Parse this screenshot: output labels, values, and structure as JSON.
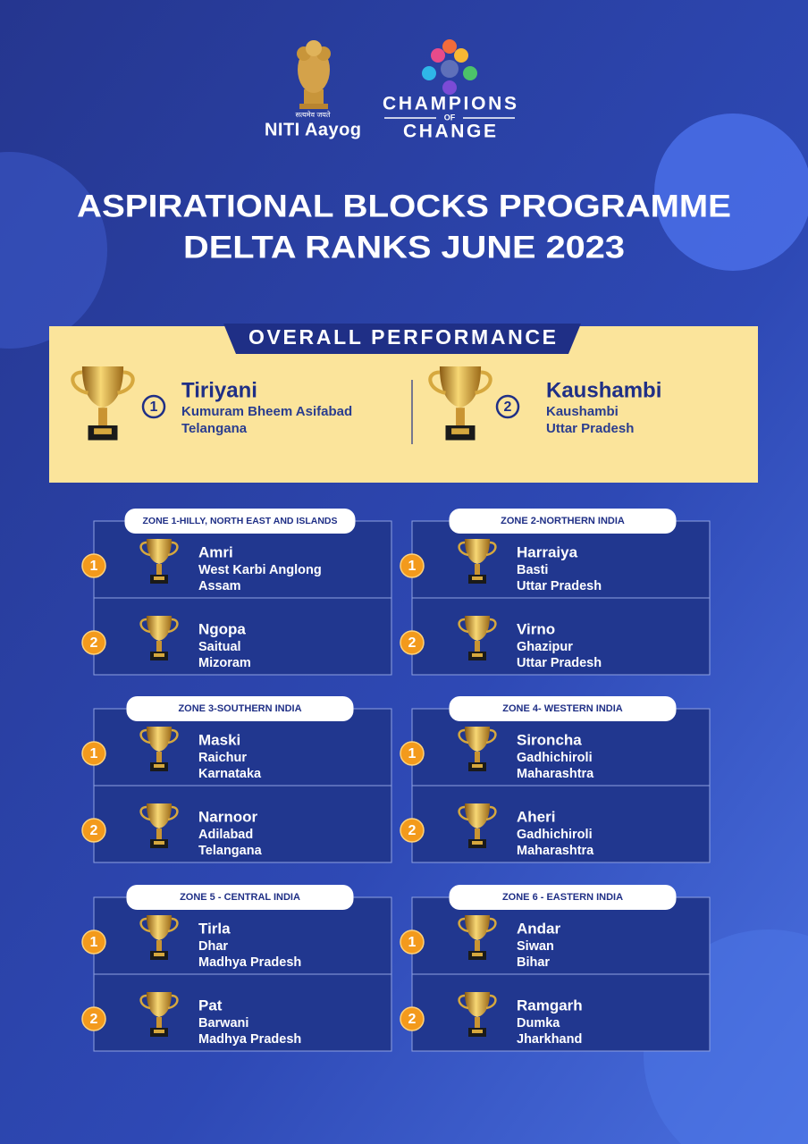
{
  "header": {
    "emblem_motto": "सत्यमेव जयते",
    "org": "NITI Aayog",
    "logo": [
      "CHAMPIONS",
      "OF",
      "CHANGE"
    ]
  },
  "title": [
    "ASPIRATIONAL BLOCKS PROGRAMME",
    "DELTA RANKS JUNE 2023"
  ],
  "overall": {
    "heading": "OVERALL PERFORMANCE",
    "entries": [
      {
        "rank": 1,
        "block": "Tiriyani",
        "district": "Kumuram Bheem Asifabad",
        "state": "Telangana"
      },
      {
        "rank": 2,
        "block": "Kaushambi",
        "district": "Kaushambi",
        "state": "Uttar Pradesh"
      }
    ]
  },
  "zones": [
    {
      "heading": "ZONE 1-HILLY, NORTH EAST AND ISLANDS",
      "entries": [
        {
          "rank": 1,
          "block": "Amri",
          "district": "West Karbi Anglong",
          "state": "Assam"
        },
        {
          "rank": 2,
          "block": "Ngopa",
          "district": "Saitual",
          "state": "Mizoram"
        }
      ]
    },
    {
      "heading": "ZONE 2-NORTHERN INDIA",
      "entries": [
        {
          "rank": 1,
          "block": "Harraiya",
          "district": "Basti",
          "state": "Uttar Pradesh"
        },
        {
          "rank": 2,
          "block": "Virno",
          "district": "Ghazipur",
          "state": "Uttar Pradesh"
        }
      ]
    },
    {
      "heading": "ZONE 3-SOUTHERN INDIA",
      "entries": [
        {
          "rank": 1,
          "block": "Maski",
          "district": "Raichur",
          "state": "Karnataka"
        },
        {
          "rank": 2,
          "block": "Narnoor",
          "district": "Adilabad",
          "state": "Telangana"
        }
      ]
    },
    {
      "heading": "ZONE 4- WESTERN INDIA",
      "entries": [
        {
          "rank": 1,
          "block": "Sironcha",
          "district": "Gadhichiroli",
          "state": "Maharashtra"
        },
        {
          "rank": 2,
          "block": "Aheri",
          "district": "Gadhichiroli",
          "state": "Maharashtra"
        }
      ]
    },
    {
      "heading": "ZONE 5 - CENTRAL INDIA",
      "entries": [
        {
          "rank": 1,
          "block": "Tirla",
          "district": "Dhar",
          "state": "Madhya Pradesh"
        },
        {
          "rank": 2,
          "block": "Pat",
          "district": "Barwani",
          "state": "Madhya Pradesh"
        }
      ]
    },
    {
      "heading": "ZONE 6 - EASTERN INDIA",
      "entries": [
        {
          "rank": 1,
          "block": "Andar",
          "district": "Siwan",
          "state": "Bihar"
        },
        {
          "rank": 2,
          "block": "Ramgarh",
          "district": "Dumka",
          "state": "Jharkhand"
        }
      ]
    }
  ]
}
